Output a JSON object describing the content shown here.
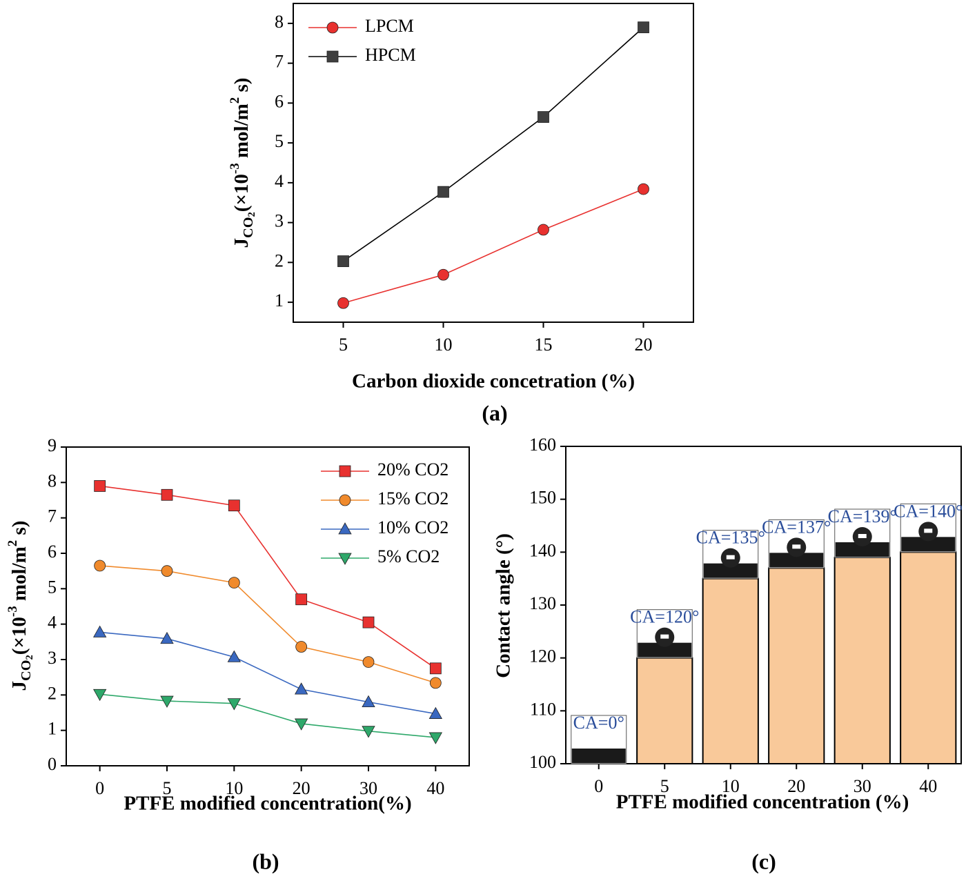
{
  "chart_data": [
    {
      "type": "line",
      "caption": "(a)",
      "x_label": "Carbon dioxide concetration (%)",
      "y_label": [
        "J",
        "CO",
        "2",
        "(×10",
        "-3",
        " mol/m",
        "2",
        " s)"
      ],
      "x": [
        5,
        10,
        15,
        20
      ],
      "series": [
        {
          "name": "LPCM",
          "color": "#e8312f",
          "marker": "circle",
          "values": [
            0.98,
            1.69,
            2.82,
            3.84
          ]
        },
        {
          "name": "HPCM",
          "color": "#3f3f3f",
          "marker": "square",
          "values": [
            2.03,
            3.77,
            5.65,
            7.9
          ]
        }
      ],
      "xlim": [
        2.5,
        22.5
      ],
      "xticks": [
        5,
        10,
        15,
        20
      ],
      "ylim": [
        0.5,
        8.5
      ],
      "yticks": [
        1,
        2,
        3,
        4,
        5,
        6,
        7,
        8
      ],
      "legend": "upper-left"
    },
    {
      "type": "line",
      "caption": "(b)",
      "x_label": "PTFE modified concentration(%)",
      "y_label": [
        "J",
        "CO",
        "2",
        "(×10",
        "-3",
        " mol/m",
        "2",
        " s)"
      ],
      "categories": [
        "0",
        "5",
        "10",
        "20",
        "30",
        "40"
      ],
      "series": [
        {
          "name": "20% CO2",
          "color": "#e8312f",
          "marker": "square",
          "values": [
            7.9,
            7.65,
            7.35,
            4.7,
            4.05,
            2.75
          ]
        },
        {
          "name": "15% CO2",
          "color": "#f08a2c",
          "marker": "circle",
          "values": [
            5.65,
            5.5,
            5.17,
            3.36,
            2.93,
            2.34
          ]
        },
        {
          "name": "10% CO2",
          "color": "#3a68c0",
          "marker": "triangle-up",
          "values": [
            3.77,
            3.59,
            3.07,
            2.16,
            1.8,
            1.47
          ]
        },
        {
          "name": "5% CO2",
          "color": "#2ea86a",
          "marker": "triangle-down",
          "values": [
            2.02,
            1.83,
            1.76,
            1.19,
            0.98,
            0.8
          ]
        }
      ],
      "ylim": [
        0,
        9
      ],
      "yticks": [
        0,
        1,
        2,
        3,
        4,
        5,
        6,
        7,
        8,
        9
      ],
      "legend": "upper-right"
    },
    {
      "type": "bar",
      "caption": "(c)",
      "x_label": "PTFE modified concentration (%)",
      "y_label": "Contact angle (°)",
      "categories": [
        "0",
        "5",
        "10",
        "20",
        "30",
        "40"
      ],
      "values": [
        null,
        120,
        135,
        137,
        139,
        140
      ],
      "annotations": [
        "CA=0°",
        "CA=120°",
        "CA=135°",
        "CA=137°",
        "CA=139°",
        "CA=140°"
      ],
      "color": "#f9c99a",
      "ylim": [
        100,
        160
      ],
      "yticks": [
        100,
        110,
        120,
        130,
        140,
        150,
        160
      ]
    }
  ]
}
